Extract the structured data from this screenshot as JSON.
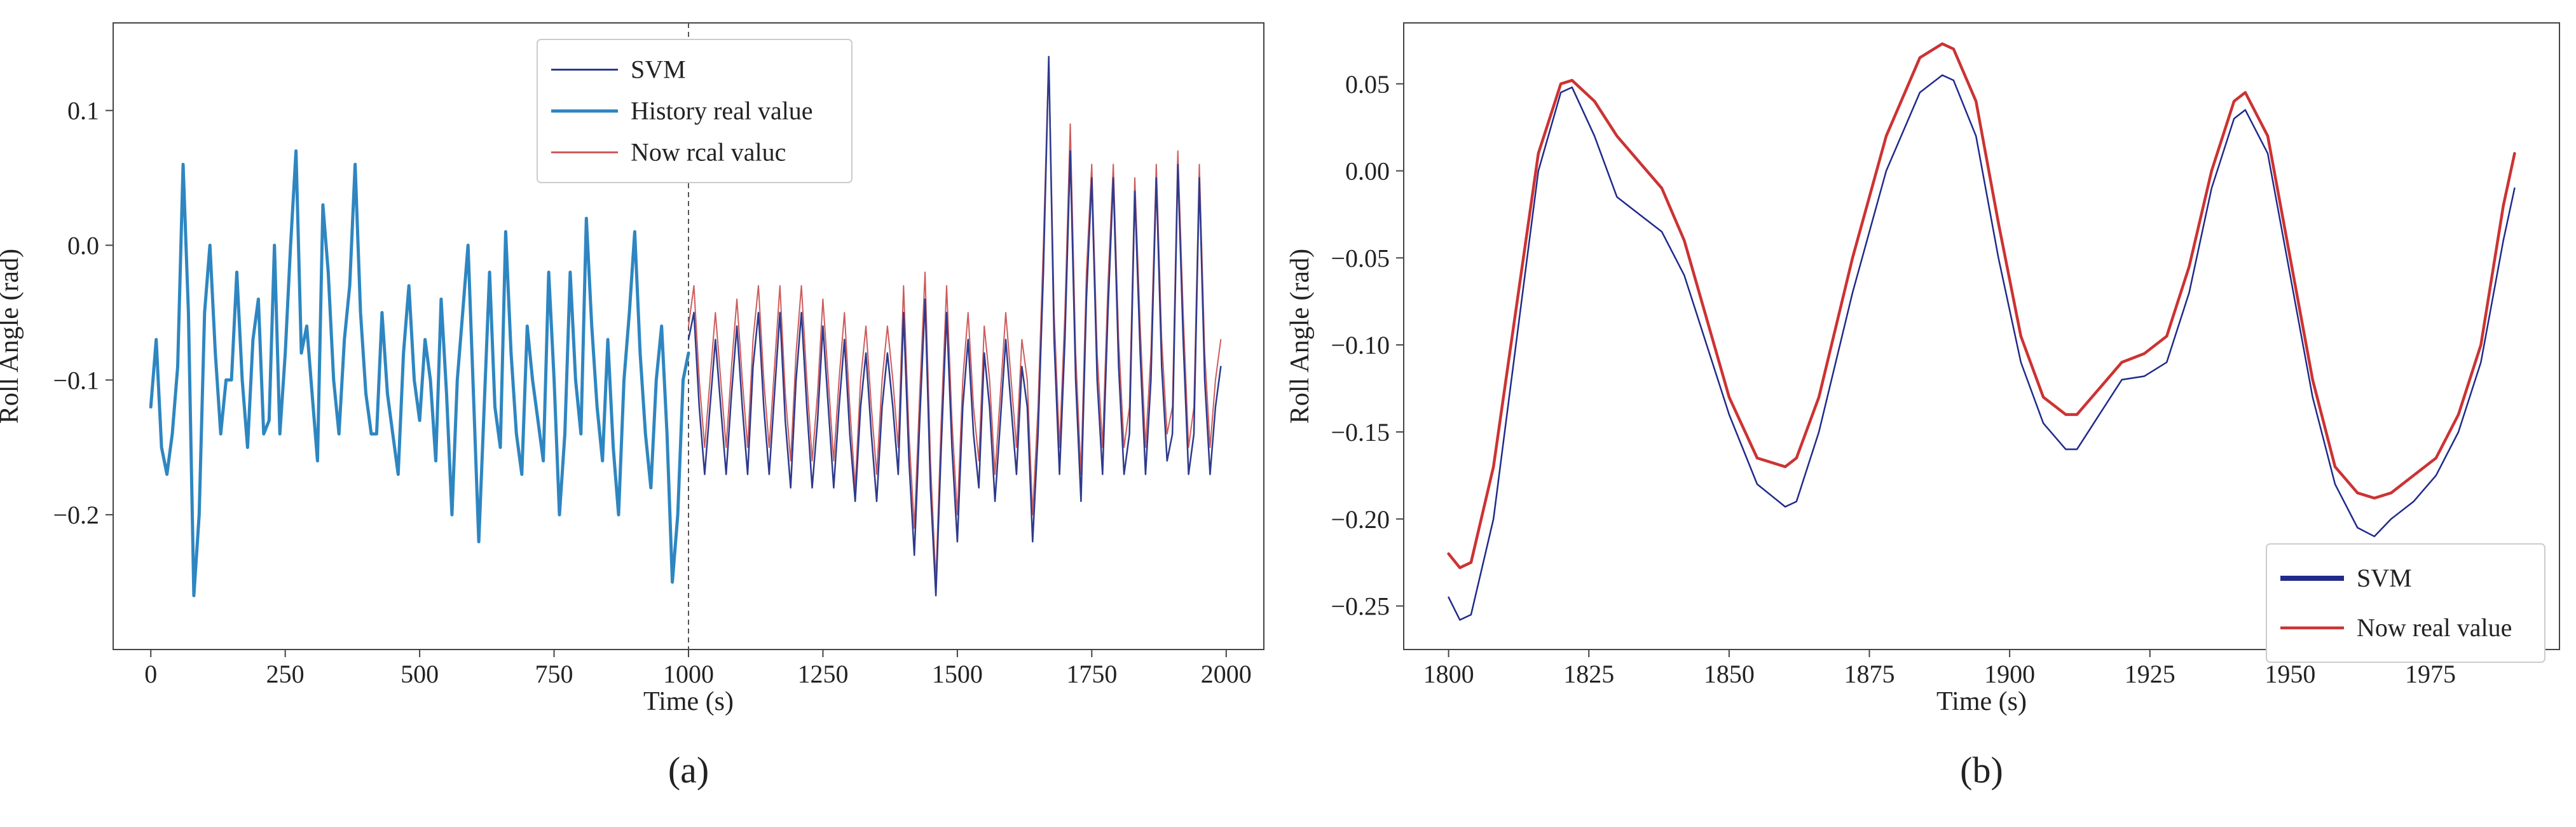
{
  "chart_data": [
    {
      "panel_label": "(a)",
      "type": "line",
      "xlabel": "Time (s)",
      "ylabel": "Roll Angle (rad)",
      "xlim": [
        -70,
        2070
      ],
      "ylim": [
        -0.3,
        0.165
      ],
      "xticks": [
        0,
        250,
        500,
        750,
        1000,
        1250,
        1500,
        1750,
        2000
      ],
      "xtick_labels": [
        "0",
        "250",
        "500",
        "750",
        "1000",
        "1250",
        "1500",
        "1750",
        "2000"
      ],
      "yticks": [
        0.1,
        0.0,
        -0.1,
        -0.2
      ],
      "ytick_labels": [
        "0.1",
        "0.0",
        "−0.1",
        "−0.2"
      ],
      "grid": false,
      "vline_x": 1000,
      "legend": {
        "position": "upper-center",
        "entries": [
          "SVM",
          "History real value",
          "Now rcal valuc"
        ]
      },
      "series": [
        {
          "name": "History real value",
          "color": "#2e86c1",
          "x": [
            0,
            10,
            20,
            30,
            40,
            50,
            60,
            70,
            80,
            90,
            100,
            110,
            120,
            130,
            140,
            150,
            160,
            170,
            180,
            190,
            200,
            210,
            220,
            230,
            240,
            250,
            260,
            270,
            280,
            290,
            300,
            310,
            320,
            330,
            340,
            350,
            360,
            370,
            380,
            390,
            400,
            410,
            420,
            430,
            440,
            450,
            460,
            470,
            480,
            490,
            500,
            510,
            520,
            530,
            540,
            550,
            560,
            570,
            580,
            590,
            600,
            610,
            620,
            630,
            640,
            650,
            660,
            670,
            680,
            690,
            700,
            710,
            720,
            730,
            740,
            750,
            760,
            770,
            780,
            790,
            800,
            810,
            820,
            830,
            840,
            850,
            860,
            870,
            880,
            890,
            900,
            910,
            920,
            930,
            940,
            950,
            960,
            970,
            980,
            990,
            1000
          ],
          "values": [
            -0.12,
            -0.07,
            -0.15,
            -0.17,
            -0.14,
            -0.09,
            0.06,
            -0.05,
            -0.26,
            -0.2,
            -0.05,
            0.0,
            -0.08,
            -0.14,
            -0.1,
            -0.1,
            -0.02,
            -0.1,
            -0.15,
            -0.07,
            -0.04,
            -0.14,
            -0.13,
            0.0,
            -0.14,
            -0.08,
            0.0,
            0.07,
            -0.08,
            -0.06,
            -0.11,
            -0.16,
            0.03,
            -0.02,
            -0.1,
            -0.14,
            -0.07,
            -0.03,
            0.06,
            -0.05,
            -0.11,
            -0.14,
            -0.14,
            -0.05,
            -0.11,
            -0.14,
            -0.17,
            -0.08,
            -0.03,
            -0.1,
            -0.13,
            -0.07,
            -0.1,
            -0.16,
            -0.04,
            -0.11,
            -0.2,
            -0.1,
            -0.05,
            0.0,
            -0.11,
            -0.22,
            -0.12,
            -0.02,
            -0.12,
            -0.15,
            0.01,
            -0.08,
            -0.14,
            -0.17,
            -0.06,
            -0.1,
            -0.13,
            -0.16,
            -0.02,
            -0.1,
            -0.2,
            -0.14,
            -0.02,
            -0.1,
            -0.14,
            0.02,
            -0.06,
            -0.12,
            -0.16,
            -0.07,
            -0.15,
            -0.2,
            -0.1,
            -0.05,
            0.01,
            -0.08,
            -0.14,
            -0.18,
            -0.1,
            -0.06,
            -0.14,
            -0.25,
            -0.2,
            -0.1,
            -0.08
          ]
        },
        {
          "name": "Now rcal valuc",
          "color": "#cd5c5c",
          "x": [
            1000,
            1010,
            1020,
            1030,
            1040,
            1050,
            1060,
            1070,
            1080,
            1090,
            1100,
            1110,
            1120,
            1130,
            1140,
            1150,
            1160,
            1170,
            1180,
            1190,
            1200,
            1210,
            1220,
            1230,
            1240,
            1250,
            1260,
            1270,
            1280,
            1290,
            1300,
            1310,
            1320,
            1330,
            1340,
            1350,
            1360,
            1370,
            1380,
            1390,
            1400,
            1410,
            1420,
            1430,
            1440,
            1450,
            1460,
            1470,
            1480,
            1490,
            1500,
            1510,
            1520,
            1530,
            1540,
            1550,
            1560,
            1570,
            1580,
            1590,
            1600,
            1610,
            1620,
            1630,
            1640,
            1650,
            1660,
            1670,
            1680,
            1690,
            1700,
            1710,
            1720,
            1730,
            1740,
            1750,
            1760,
            1770,
            1780,
            1790,
            1800,
            1810,
            1820,
            1830,
            1840,
            1850,
            1860,
            1870,
            1880,
            1890,
            1900,
            1910,
            1920,
            1930,
            1940,
            1950,
            1960,
            1970,
            1980,
            1990
          ],
          "values": [
            -0.06,
            -0.03,
            -0.1,
            -0.15,
            -0.1,
            -0.05,
            -0.1,
            -0.15,
            -0.09,
            -0.04,
            -0.1,
            -0.15,
            -0.07,
            -0.03,
            -0.1,
            -0.15,
            -0.09,
            -0.03,
            -0.11,
            -0.16,
            -0.08,
            -0.03,
            -0.1,
            -0.16,
            -0.11,
            -0.04,
            -0.1,
            -0.16,
            -0.1,
            -0.05,
            -0.12,
            -0.18,
            -0.1,
            -0.06,
            -0.12,
            -0.17,
            -0.1,
            -0.06,
            -0.1,
            -0.15,
            -0.03,
            -0.14,
            -0.21,
            -0.11,
            -0.02,
            -0.16,
            -0.25,
            -0.13,
            -0.03,
            -0.13,
            -0.2,
            -0.1,
            -0.05,
            -0.12,
            -0.16,
            -0.06,
            -0.1,
            -0.17,
            -0.11,
            -0.05,
            -0.1,
            -0.15,
            -0.07,
            -0.1,
            -0.2,
            -0.12,
            0.0,
            0.14,
            -0.05,
            -0.15,
            -0.05,
            0.09,
            -0.08,
            -0.17,
            -0.02,
            0.06,
            -0.08,
            -0.15,
            -0.03,
            0.06,
            -0.07,
            -0.15,
            -0.12,
            0.05,
            -0.06,
            -0.15,
            -0.08,
            0.06,
            -0.07,
            -0.14,
            -0.12,
            0.07,
            -0.05,
            -0.15,
            -0.12,
            0.06,
            -0.08,
            -0.15,
            -0.1,
            -0.07
          ]
        },
        {
          "name": "SVM",
          "color": "#2e3a8c",
          "x": [
            1000,
            1010,
            1020,
            1030,
            1040,
            1050,
            1060,
            1070,
            1080,
            1090,
            1100,
            1110,
            1120,
            1130,
            1140,
            1150,
            1160,
            1170,
            1180,
            1190,
            1200,
            1210,
            1220,
            1230,
            1240,
            1250,
            1260,
            1270,
            1280,
            1290,
            1300,
            1310,
            1320,
            1330,
            1340,
            1350,
            1360,
            1370,
            1380,
            1390,
            1400,
            1410,
            1420,
            1430,
            1440,
            1450,
            1460,
            1470,
            1480,
            1490,
            1500,
            1510,
            1520,
            1530,
            1540,
            1550,
            1560,
            1570,
            1580,
            1590,
            1600,
            1610,
            1620,
            1630,
            1640,
            1650,
            1660,
            1670,
            1680,
            1690,
            1700,
            1710,
            1720,
            1730,
            1740,
            1750,
            1760,
            1770,
            1780,
            1790,
            1800,
            1810,
            1820,
            1830,
            1840,
            1850,
            1860,
            1870,
            1880,
            1890,
            1900,
            1910,
            1920,
            1930,
            1940,
            1950,
            1960,
            1970,
            1980,
            1990
          ],
          "values": [
            -0.07,
            -0.05,
            -0.12,
            -0.17,
            -0.12,
            -0.07,
            -0.12,
            -0.17,
            -0.11,
            -0.06,
            -0.12,
            -0.17,
            -0.09,
            -0.05,
            -0.12,
            -0.17,
            -0.11,
            -0.05,
            -0.13,
            -0.18,
            -0.1,
            -0.05,
            -0.12,
            -0.18,
            -0.13,
            -0.06,
            -0.12,
            -0.18,
            -0.12,
            -0.07,
            -0.14,
            -0.19,
            -0.12,
            -0.08,
            -0.14,
            -0.19,
            -0.12,
            -0.08,
            -0.12,
            -0.17,
            -0.05,
            -0.16,
            -0.23,
            -0.13,
            -0.04,
            -0.18,
            -0.26,
            -0.15,
            -0.05,
            -0.15,
            -0.22,
            -0.12,
            -0.07,
            -0.14,
            -0.18,
            -0.08,
            -0.12,
            -0.19,
            -0.13,
            -0.07,
            -0.12,
            -0.17,
            -0.09,
            -0.12,
            -0.22,
            -0.14,
            -0.02,
            0.14,
            -0.07,
            -0.17,
            -0.07,
            0.07,
            -0.1,
            -0.19,
            -0.04,
            0.05,
            -0.1,
            -0.17,
            -0.05,
            0.05,
            -0.09,
            -0.17,
            -0.14,
            0.04,
            -0.08,
            -0.17,
            -0.1,
            0.05,
            -0.09,
            -0.16,
            -0.14,
            0.06,
            -0.07,
            -0.17,
            -0.14,
            0.05,
            -0.1,
            -0.17,
            -0.12,
            -0.09
          ]
        }
      ]
    },
    {
      "panel_label": "(b)",
      "type": "line",
      "xlabel": "Time (s)",
      "ylabel": "Roll Angle (rad)",
      "xlim": [
        1792,
        1998
      ],
      "ylim": [
        -0.275,
        0.085
      ],
      "xticks": [
        1800,
        1825,
        1850,
        1875,
        1900,
        1925,
        1950,
        1975
      ],
      "xtick_labels": [
        "1800",
        "1825",
        "1850",
        "1875",
        "1900",
        "1925",
        "1950",
        "1975"
      ],
      "yticks": [
        0.05,
        0.0,
        -0.05,
        -0.1,
        -0.15,
        -0.2,
        -0.25
      ],
      "ytick_labels": [
        "0.05",
        "0.00",
        "−0.05",
        "−0.10",
        "−0.15",
        "−0.20",
        "−0.25"
      ],
      "grid": false,
      "legend": {
        "position": "lower-right",
        "entries": [
          "SVM",
          "Now real value"
        ]
      },
      "series": [
        {
          "name": "SVM",
          "color": "#1f2a8a",
          "x": [
            1800,
            1802,
            1804,
            1808,
            1812,
            1816,
            1820,
            1822,
            1826,
            1830,
            1834,
            1838,
            1842,
            1846,
            1850,
            1855,
            1860,
            1862,
            1866,
            1872,
            1878,
            1884,
            1888,
            1890,
            1894,
            1898,
            1902,
            1906,
            1910,
            1912,
            1916,
            1920,
            1924,
            1928,
            1932,
            1936,
            1940,
            1942,
            1946,
            1950,
            1954,
            1958,
            1962,
            1965,
            1968,
            1972,
            1976,
            1980,
            1984,
            1988,
            1990
          ],
          "values": [
            -0.245,
            -0.258,
            -0.255,
            -0.2,
            -0.1,
            0.0,
            0.045,
            0.048,
            0.02,
            -0.015,
            -0.025,
            -0.035,
            -0.06,
            -0.1,
            -0.14,
            -0.18,
            -0.193,
            -0.19,
            -0.15,
            -0.07,
            0.0,
            0.045,
            0.055,
            0.052,
            0.02,
            -0.05,
            -0.11,
            -0.145,
            -0.16,
            -0.16,
            -0.14,
            -0.12,
            -0.118,
            -0.11,
            -0.07,
            -0.01,
            0.03,
            0.035,
            0.01,
            -0.06,
            -0.13,
            -0.18,
            -0.205,
            -0.21,
            -0.2,
            -0.19,
            -0.175,
            -0.15,
            -0.11,
            -0.04,
            -0.01
          ]
        },
        {
          "name": "Now real value",
          "color": "#cc3333",
          "x": [
            1800,
            1802,
            1804,
            1808,
            1812,
            1816,
            1820,
            1822,
            1826,
            1830,
            1834,
            1838,
            1842,
            1846,
            1850,
            1855,
            1860,
            1862,
            1866,
            1872,
            1878,
            1884,
            1888,
            1890,
            1894,
            1898,
            1902,
            1906,
            1910,
            1912,
            1916,
            1920,
            1924,
            1928,
            1932,
            1936,
            1940,
            1942,
            1946,
            1950,
            1954,
            1958,
            1962,
            1965,
            1968,
            1972,
            1976,
            1980,
            1984,
            1988,
            1990
          ],
          "values": [
            -0.22,
            -0.228,
            -0.225,
            -0.17,
            -0.08,
            0.01,
            0.05,
            0.052,
            0.04,
            0.02,
            0.005,
            -0.01,
            -0.04,
            -0.085,
            -0.13,
            -0.165,
            -0.17,
            -0.165,
            -0.13,
            -0.05,
            0.02,
            0.065,
            0.073,
            0.07,
            0.04,
            -0.03,
            -0.095,
            -0.13,
            -0.14,
            -0.14,
            -0.125,
            -0.11,
            -0.105,
            -0.095,
            -0.055,
            0.0,
            0.04,
            0.045,
            0.02,
            -0.05,
            -0.12,
            -0.17,
            -0.185,
            -0.188,
            -0.185,
            -0.175,
            -0.165,
            -0.14,
            -0.1,
            -0.02,
            0.01
          ]
        }
      ]
    }
  ]
}
